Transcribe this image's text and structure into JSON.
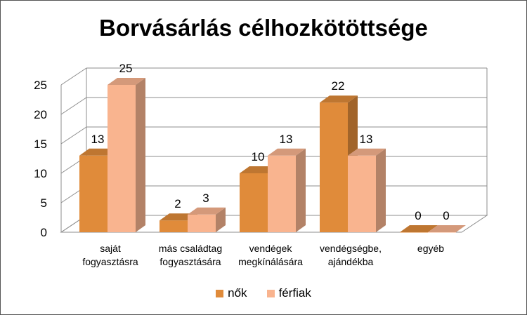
{
  "chart_data": {
    "type": "bar",
    "title": "Borvásárlás célhozkötöttsége",
    "categories": [
      [
        "saját",
        "fogyasztásra"
      ],
      [
        "más családtag",
        "fogyasztására"
      ],
      [
        "vendégek",
        "megkínálására"
      ],
      [
        "vendégségbe,",
        "ajándékba"
      ],
      [
        "egyéb"
      ]
    ],
    "series": [
      {
        "name": "nők",
        "values": [
          13,
          2,
          10,
          22,
          0
        ],
        "color": "#E08B3A"
      },
      {
        "name": "férfiak",
        "values": [
          25,
          3,
          13,
          13,
          0
        ],
        "color": "#F9B48F"
      }
    ],
    "yticks": [
      0,
      5,
      10,
      15,
      20,
      25
    ],
    "ylim": [
      0,
      25
    ],
    "grid": true,
    "legend": "bottom",
    "style": "3d-clustered-column"
  }
}
